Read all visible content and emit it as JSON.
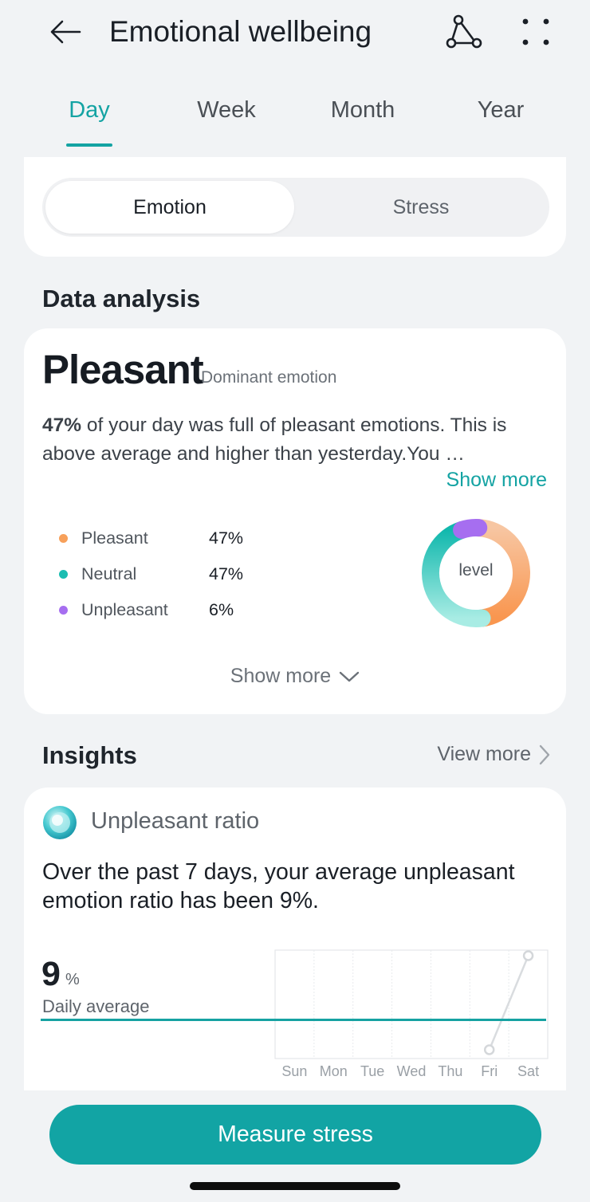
{
  "header": {
    "title": "Emotional wellbeing"
  },
  "tabs": [
    {
      "label": "Day",
      "active": true
    },
    {
      "label": "Week",
      "active": false
    },
    {
      "label": "Month",
      "active": false
    },
    {
      "label": "Year",
      "active": false
    }
  ],
  "segment": {
    "options": [
      "Emotion",
      "Stress"
    ],
    "selected": "Emotion"
  },
  "data_analysis": {
    "section_title": "Data analysis",
    "dominant": "Pleasant",
    "dominant_label": "Dominant emotion",
    "summary_bold": "47%",
    "summary_text": " of your day was full of pleasant emotions. This is above average and higher than yesterday.You …",
    "show_more_link": "Show more",
    "legend": [
      {
        "label": "Pleasant",
        "value": "47%",
        "color": "#f7a05a"
      },
      {
        "label": "Neutral",
        "value": "47%",
        "color": "#1bbdb1"
      },
      {
        "label": "Unpleasant",
        "value": "6%",
        "color": "#a66ef0"
      }
    ],
    "donut_center_label": "level",
    "show_more_expand": "Show more"
  },
  "insights": {
    "section_title": "Insights",
    "view_more": "View more",
    "card_title": "Unpleasant ratio",
    "card_text": "Over the past 7 days, your average unpleasant emotion ratio has been 9%.",
    "avg_value": "9",
    "avg_unit": "%",
    "avg_label": "Daily average"
  },
  "chart_data": {
    "type": "line",
    "categories": [
      "Sun",
      "Mon",
      "Tue",
      "Wed",
      "Thu",
      "Fri",
      "Sat"
    ],
    "values": [
      null,
      null,
      null,
      null,
      null,
      0,
      18
    ],
    "average": 9
  },
  "primary_action": {
    "label": "Measure stress"
  },
  "colors": {
    "accent": "#14a3a3",
    "pleasant": "#f7a05a",
    "neutral": "#1bbdb1",
    "unpleasant": "#a66ef0"
  }
}
